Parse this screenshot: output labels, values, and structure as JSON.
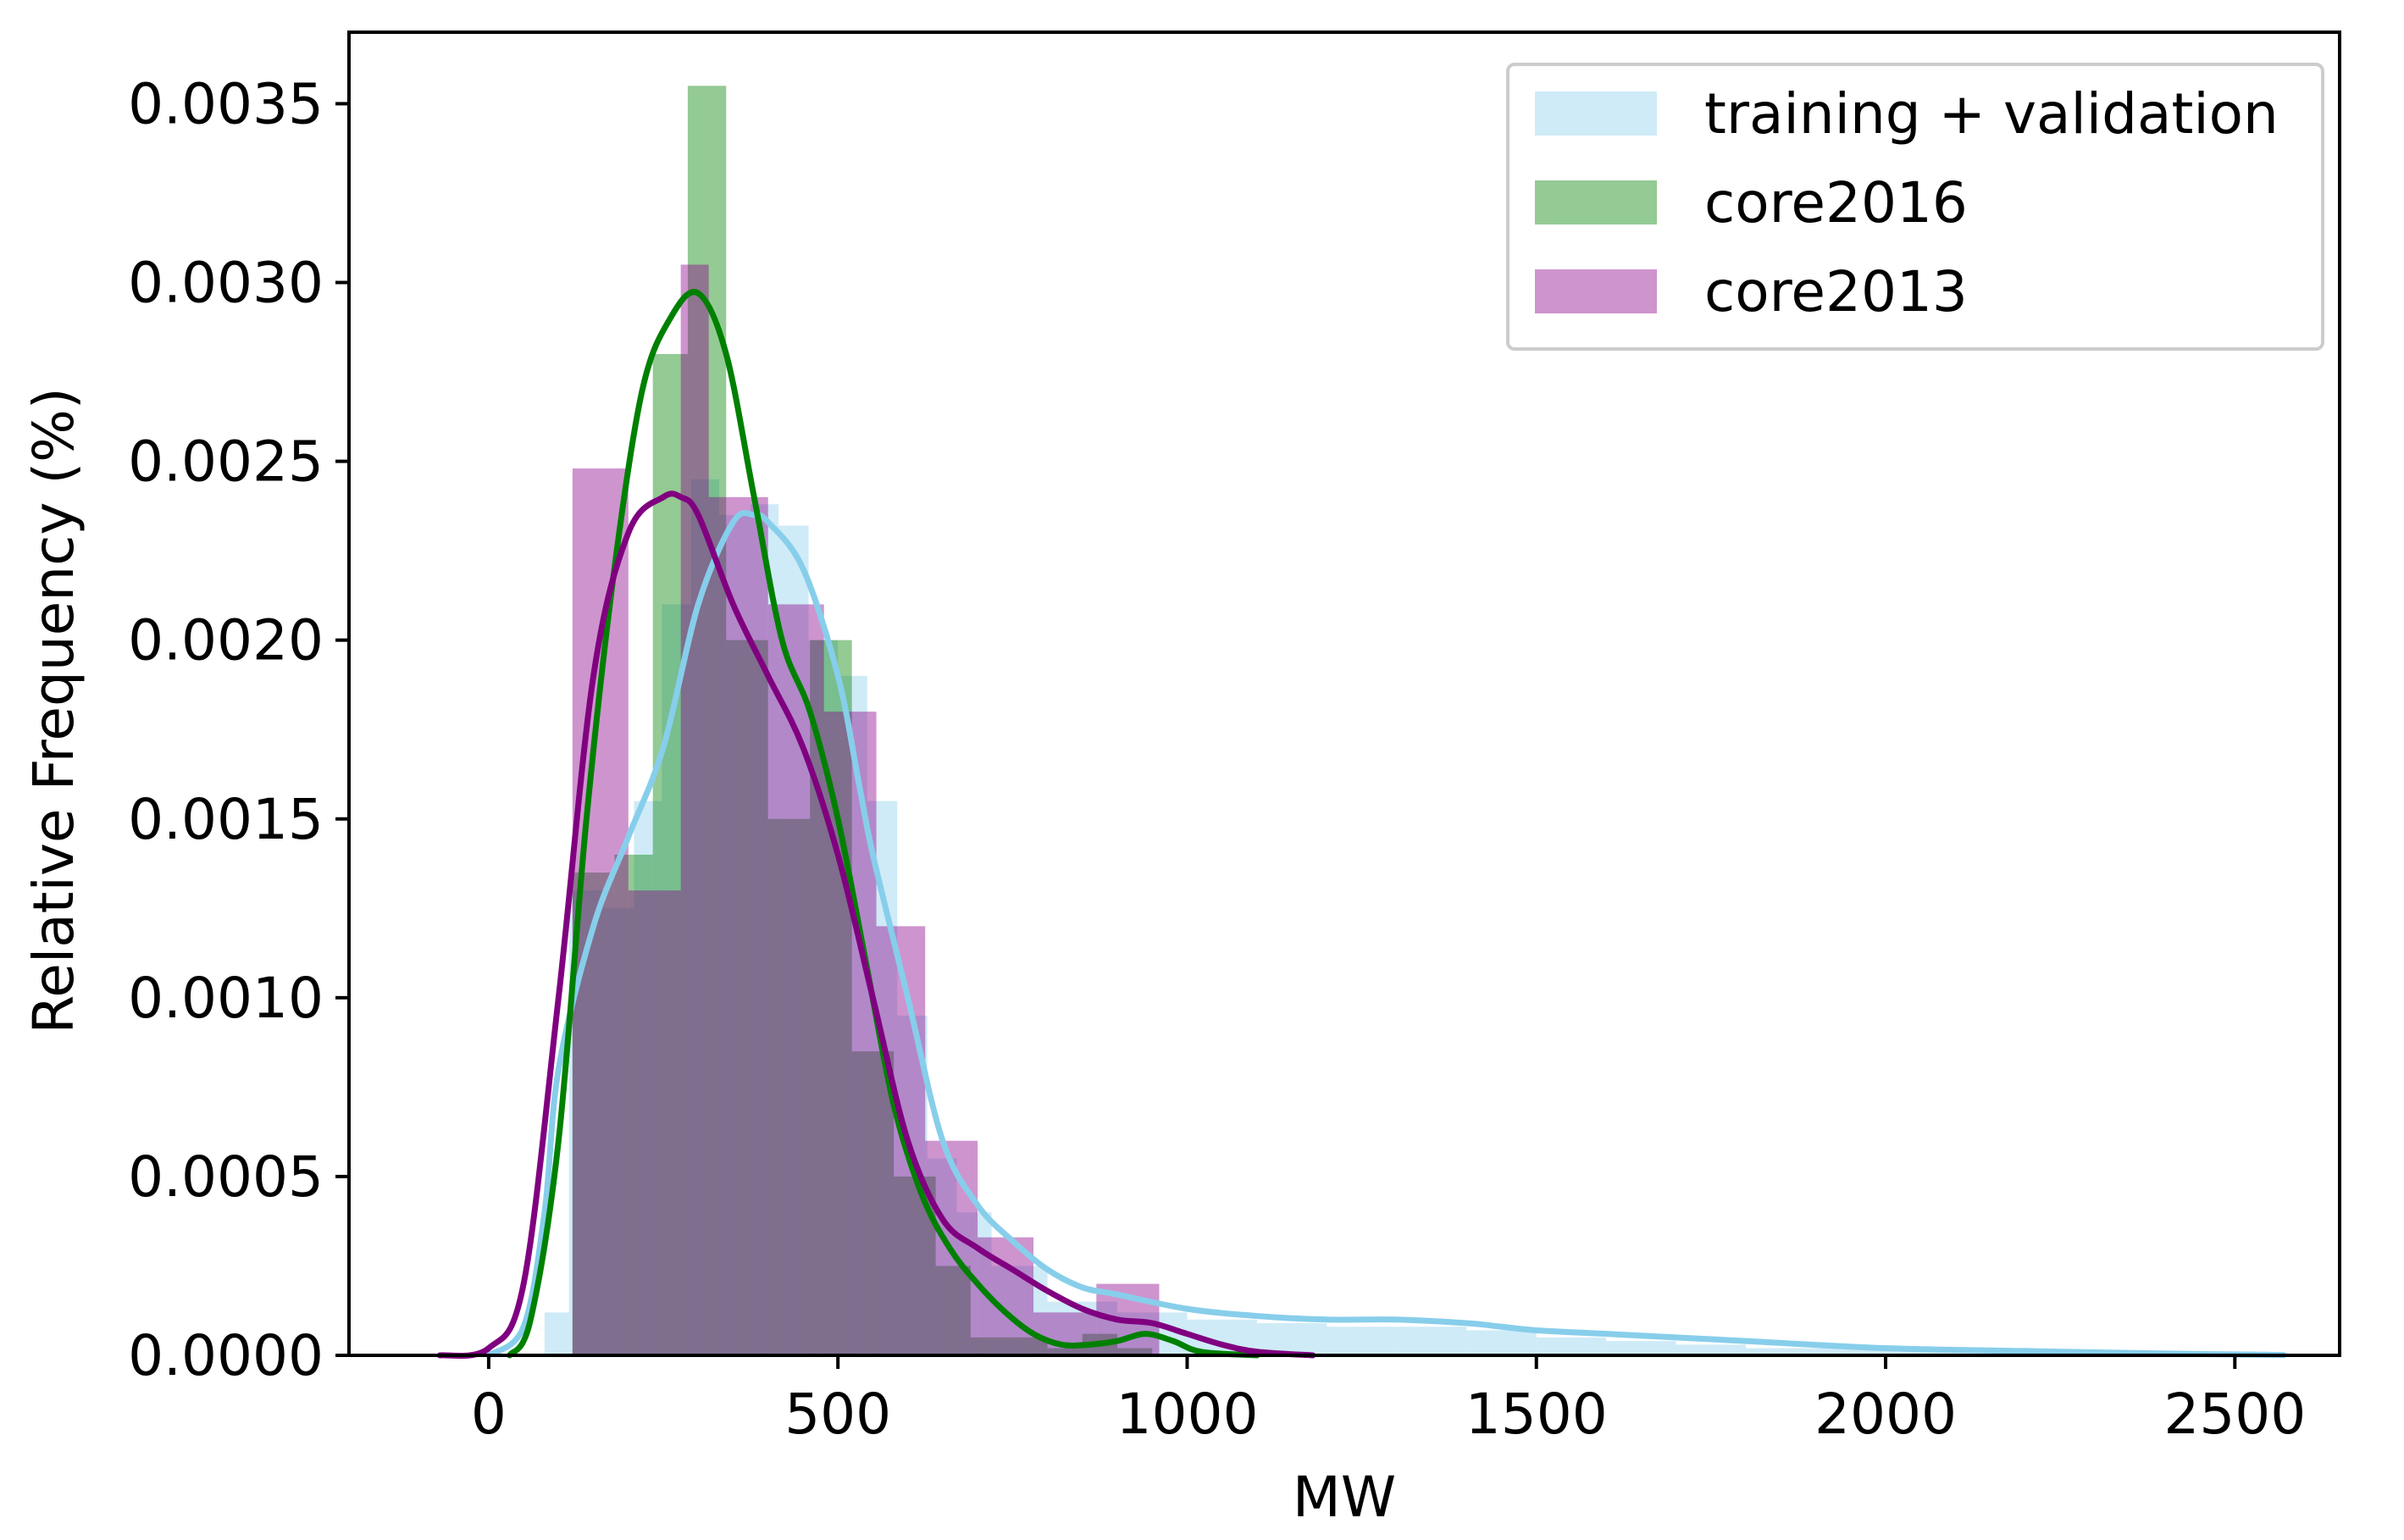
{
  "chart_data": {
    "type": "bar",
    "subtype": "overlaid histogram with density curves",
    "title": "",
    "xlabel": "MW",
    "ylabel": "Relative Frequency (%)",
    "xlim": [
      -200,
      2650
    ],
    "ylim": [
      0,
      0.0037
    ],
    "x_ticks": [
      0,
      500,
      1000,
      1500,
      2000,
      2500
    ],
    "y_ticks": [
      "0.0000",
      "0.0005",
      "0.0010",
      "0.0015",
      "0.0020",
      "0.0025",
      "0.0030",
      "0.0035"
    ],
    "grid": false,
    "legend_position": "top-right",
    "series": [
      {
        "name": "training + validation",
        "fill_color": "#87ceeb",
        "line_color": "#87ceeb",
        "hist": {
          "bin_edges": [
            80,
            115,
            165,
            208,
            248,
            290,
            330,
            375,
            415,
            458,
            500,
            542,
            585,
            628,
            670,
            720,
            800,
            900,
            1000,
            1100,
            1200,
            1300,
            1400,
            1500,
            1600,
            1700,
            1800,
            1900,
            2000,
            2100,
            2200,
            2300,
            2400,
            2500,
            2550
          ],
          "heights": [
            0.00012,
            0.0013,
            0.00125,
            0.00155,
            0.0021,
            0.00245,
            0.00235,
            0.00238,
            0.00232,
            0.002,
            0.0019,
            0.00155,
            0.00095,
            0.00055,
            0.0004,
            0.00025,
            0.00015,
            0.00012,
            0.0001,
            9e-05,
            8e-05,
            8e-05,
            7e-05,
            5e-05,
            4e-05,
            3e-05,
            2e-05,
            2e-05,
            2e-05,
            1e-05,
            1e-05,
            1e-05,
            1e-05,
            1e-05
          ]
        },
        "kde": {
          "x": [
            0,
            50,
            80,
            100,
            150,
            200,
            250,
            300,
            350,
            380,
            400,
            450,
            500,
            530,
            550,
            600,
            650,
            700,
            750,
            800,
            850,
            900,
            1000,
            1100,
            1200,
            1300,
            1400,
            1450,
            1500,
            1600,
            1700,
            1800,
            2000,
            2200,
            2400,
            2570
          ],
          "y": [
            0.0,
            8e-05,
            0.0004,
            0.0008,
            0.0012,
            0.00145,
            0.0017,
            0.0021,
            0.00233,
            0.00235,
            0.00233,
            0.0022,
            0.0019,
            0.0016,
            0.0014,
            0.001,
            0.0006,
            0.00042,
            0.00032,
            0.00024,
            0.00019,
            0.00017,
            0.00013,
            0.00011,
            0.0001,
            0.0001,
            9e-05,
            8e-05,
            7e-05,
            6e-05,
            5e-05,
            4e-05,
            2e-05,
            1.2e-05,
            5e-06,
            1e-06
          ]
        }
      },
      {
        "name": "core2016",
        "fill_color": "#008000",
        "line_color": "#008000",
        "hist": {
          "bin_edges": [
            120,
            180,
            235,
            285,
            340,
            400,
            460,
            520,
            580,
            640,
            690,
            750,
            800,
            850,
            900,
            950
          ],
          "heights": [
            0.00135,
            0.0014,
            0.0028,
            0.00355,
            0.002,
            0.0015,
            0.002,
            0.00085,
            0.0005,
            0.00025,
            5e-05,
            5e-05,
            2e-05,
            6e-05,
            2e-05
          ]
        },
        "kde": {
          "x": [
            30,
            60,
            100,
            140,
            180,
            220,
            260,
            300,
            340,
            380,
            420,
            460,
            500,
            540,
            580,
            620,
            660,
            700,
            740,
            780,
            820,
            860,
            900,
            940,
            980,
            1020,
            1100
          ],
          "y": [
            0.0,
            0.0001,
            0.0006,
            0.0015,
            0.0022,
            0.0027,
            0.0029,
            0.00297,
            0.0028,
            0.0024,
            0.002,
            0.0018,
            0.0015,
            0.0011,
            0.0007,
            0.00045,
            0.0003,
            0.0002,
            0.00012,
            6e-05,
            3e-05,
            3e-05,
            4e-05,
            6e-05,
            4e-05,
            1e-05,
            0.0
          ]
        }
      },
      {
        "name": "core2013",
        "fill_color": "#8b008b",
        "line_color": "#800080",
        "hist": {
          "bin_edges": [
            120,
            200,
            275,
            315,
            400,
            480,
            555,
            625,
            700,
            780,
            870,
            960
          ],
          "heights": [
            0.00248,
            0.0013,
            0.00305,
            0.0024,
            0.0021,
            0.0018,
            0.0012,
            0.0006,
            0.00033,
            0.00012,
            0.0002
          ]
        },
        "kde": {
          "x": [
            -70,
            0,
            50,
            100,
            150,
            200,
            250,
            275,
            300,
            350,
            400,
            450,
            500,
            550,
            600,
            650,
            700,
            750,
            800,
            850,
            900,
            950,
            1000,
            1050,
            1100,
            1180
          ],
          "y": [
            0.0,
            2e-05,
            0.0002,
            0.001,
            0.0019,
            0.0023,
            0.0024,
            0.0024,
            0.00235,
            0.0021,
            0.0019,
            0.0017,
            0.0014,
            0.001,
            0.0006,
            0.00038,
            0.0003,
            0.00024,
            0.00018,
            0.00013,
            0.0001,
            9e-05,
            6e-05,
            3e-05,
            1e-05,
            0.0
          ]
        }
      }
    ]
  }
}
